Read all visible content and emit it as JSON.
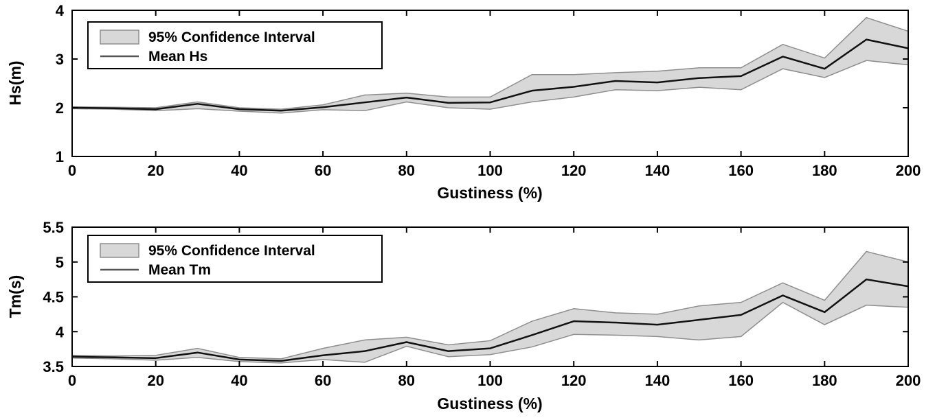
{
  "figure": {
    "background": "#ffffff"
  },
  "chart_data": [
    {
      "type": "area",
      "title": "",
      "xlabel": "Gustiness (%)",
      "ylabel": "Hs(m)",
      "xlim": [
        0,
        200
      ],
      "ylim": [
        1,
        4
      ],
      "xticks": [
        0,
        20,
        40,
        60,
        80,
        100,
        120,
        140,
        160,
        180,
        200
      ],
      "xtick_labels": [
        "0",
        "20",
        "40",
        "60",
        "80",
        "100",
        "120",
        "140",
        "160",
        "180",
        "200"
      ],
      "yticks": [
        1,
        2,
        3,
        4
      ],
      "ytick_labels": [
        "1",
        "2",
        "3",
        "4"
      ],
      "grid": false,
      "legend": {
        "position": "upper-left",
        "entries": [
          "95% Confidence Interval",
          "Mean Hs"
        ]
      },
      "x": [
        0,
        10,
        20,
        30,
        40,
        50,
        60,
        70,
        80,
        90,
        100,
        110,
        120,
        130,
        140,
        150,
        160,
        170,
        180,
        190,
        200
      ],
      "series": [
        {
          "name": "Mean Hs",
          "role": "mean",
          "color": "#111111",
          "values": [
            2.0,
            1.99,
            1.97,
            2.08,
            1.97,
            1.94,
            2.01,
            2.11,
            2.21,
            2.1,
            2.11,
            2.35,
            2.43,
            2.55,
            2.52,
            2.61,
            2.65,
            3.05,
            2.8,
            3.4,
            3.22
          ]
        },
        {
          "name": "95% CI upper bound",
          "role": "ci_upper",
          "values": [
            2.02,
            2.01,
            2.0,
            2.12,
            2.0,
            1.97,
            2.06,
            2.26,
            2.3,
            2.22,
            2.22,
            2.68,
            2.68,
            2.72,
            2.75,
            2.82,
            2.82,
            3.3,
            3.02,
            3.85,
            3.57
          ]
        },
        {
          "name": "95% CI lower bound",
          "role": "ci_lower",
          "values": [
            1.98,
            1.97,
            1.94,
            1.98,
            1.93,
            1.89,
            1.96,
            1.94,
            2.12,
            2.0,
            1.97,
            2.12,
            2.22,
            2.37,
            2.35,
            2.42,
            2.37,
            2.8,
            2.62,
            2.97,
            2.88
          ]
        }
      ],
      "band": {
        "fill": "#d8d8d8",
        "edge": "#8e8e8e"
      }
    },
    {
      "type": "area",
      "title": "",
      "xlabel": "Gustiness (%)",
      "ylabel": "Tm(s)",
      "xlim": [
        0,
        200
      ],
      "ylim": [
        3.5,
        5.5
      ],
      "xticks": [
        0,
        20,
        40,
        60,
        80,
        100,
        120,
        140,
        160,
        180,
        200
      ],
      "xtick_labels": [
        "0",
        "20",
        "40",
        "60",
        "80",
        "100",
        "120",
        "140",
        "160",
        "180",
        "200"
      ],
      "yticks": [
        3.5,
        4,
        4.5,
        5,
        5.5
      ],
      "ytick_labels": [
        "3.5",
        "4",
        "4.5",
        "5",
        "5.5"
      ],
      "grid": false,
      "legend": {
        "position": "upper-left",
        "entries": [
          "95% Confidence Interval",
          "Mean Tm"
        ]
      },
      "x": [
        0,
        10,
        20,
        30,
        40,
        50,
        60,
        70,
        80,
        90,
        100,
        110,
        120,
        130,
        140,
        150,
        160,
        170,
        180,
        190,
        200
      ],
      "series": [
        {
          "name": "Mean Tm",
          "role": "mean",
          "color": "#111111",
          "values": [
            3.64,
            3.63,
            3.62,
            3.7,
            3.6,
            3.58,
            3.66,
            3.72,
            3.85,
            3.72,
            3.76,
            3.95,
            4.15,
            4.13,
            4.1,
            4.17,
            4.24,
            4.52,
            4.28,
            4.75,
            4.65
          ]
        },
        {
          "name": "95% CI upper bound",
          "role": "ci_upper",
          "values": [
            3.66,
            3.65,
            3.66,
            3.76,
            3.63,
            3.61,
            3.76,
            3.88,
            3.92,
            3.81,
            3.87,
            4.15,
            4.33,
            4.27,
            4.25,
            4.37,
            4.42,
            4.7,
            4.45,
            5.15,
            5.0
          ]
        },
        {
          "name": "95% CI lower bound",
          "role": "ci_lower",
          "values": [
            3.62,
            3.61,
            3.59,
            3.63,
            3.57,
            3.55,
            3.6,
            3.56,
            3.79,
            3.64,
            3.67,
            3.78,
            3.96,
            3.95,
            3.93,
            3.88,
            3.93,
            4.42,
            4.1,
            4.38,
            4.35
          ]
        }
      ],
      "band": {
        "fill": "#d8d8d8",
        "edge": "#8e8e8e"
      }
    }
  ]
}
